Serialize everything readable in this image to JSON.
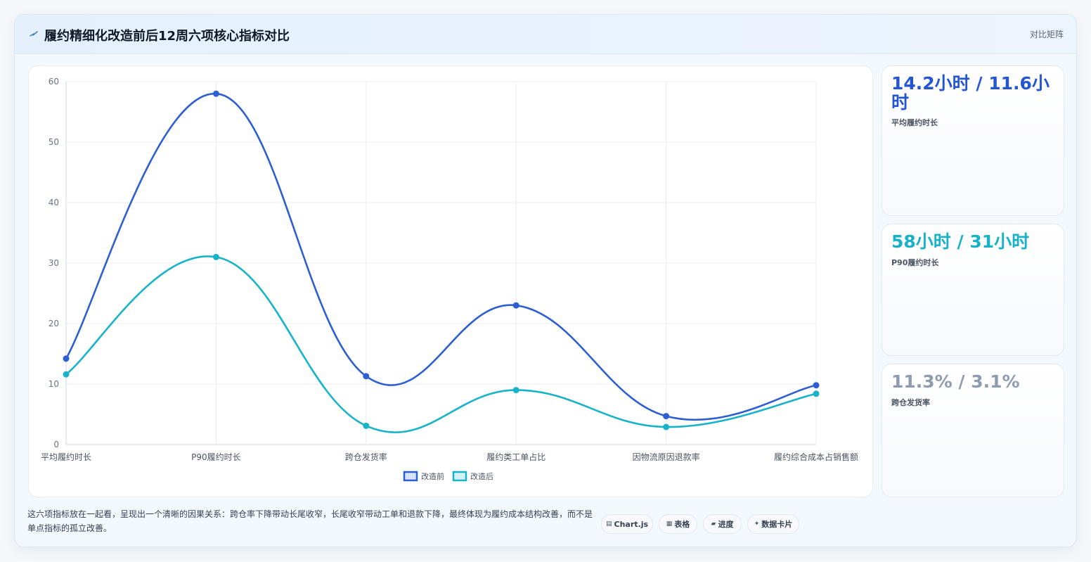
{
  "header": {
    "icon": "bolt-icon",
    "title": "履约精细化改造前后12周六项核心指标对比",
    "tag": "对比矩阵"
  },
  "chart_data": {
    "type": "line",
    "categories": [
      "平均履约时长",
      "P90履约时长",
      "跨仓发货率",
      "履约类工单占比",
      "因物流原因退款率",
      "履约综合成本占销售额"
    ],
    "series": [
      {
        "name": "改造前",
        "values": [
          14.2,
          58,
          11.3,
          23,
          4.7,
          9.8
        ],
        "color": "#2d5fd2"
      },
      {
        "name": "改造后",
        "values": [
          11.6,
          31,
          3.1,
          9,
          2.9,
          8.4
        ],
        "color": "#18b3c9"
      }
    ],
    "yticks": [
      0,
      10,
      20,
      30,
      40,
      50,
      60
    ],
    "ylim": [
      0,
      60
    ],
    "grid": true,
    "legend_position": "bottom",
    "smooth": true
  },
  "kpis": [
    {
      "value": "14.2小时 / 11.6小时",
      "label": "平均履约时长",
      "color": "#2456d3"
    },
    {
      "value": "58小时 / 31小时",
      "label": "P90履约时长",
      "color": "#17b2c7"
    },
    {
      "value": "11.3% / 3.1%",
      "label": "跨仓发货率",
      "color": "#8e9bb0"
    }
  ],
  "description": "这六项指标放在一起看，呈现出一个清晰的因果关系：跨仓率下降带动长尾收窄，长尾收窄带动工单和退款下降，最终体现为履约成本结构改善，而不是单点指标的孤立改善。",
  "chips": [
    {
      "icon": "▤",
      "label": "Chart.js"
    },
    {
      "icon": "▦",
      "label": "表格"
    },
    {
      "icon": "▰",
      "label": "进度"
    },
    {
      "icon": "✦",
      "label": "数据卡片"
    }
  ]
}
